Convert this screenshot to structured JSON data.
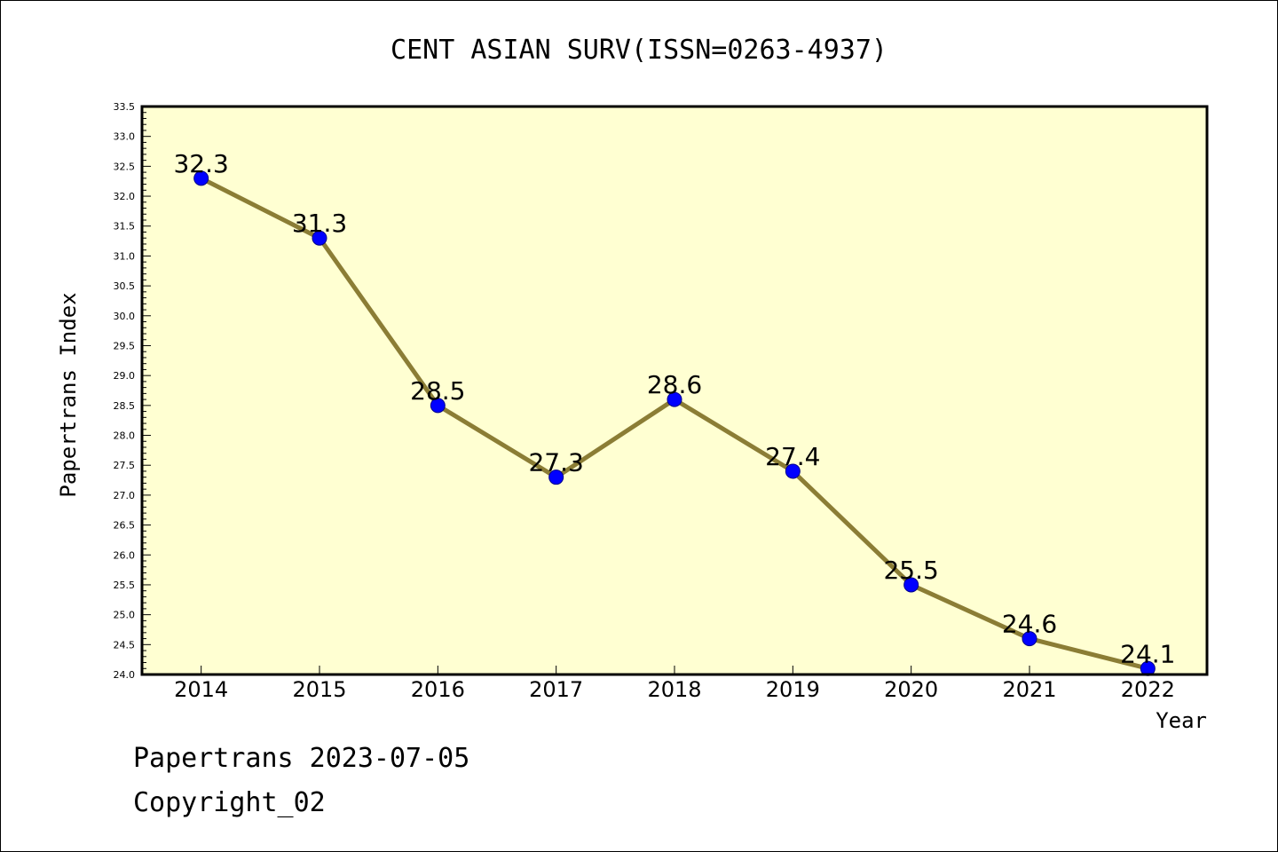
{
  "chart_data": {
    "type": "line",
    "title": "CENT ASIAN SURV(ISSN=0263-4937)",
    "xlabel": "Year",
    "ylabel": "Papertrans Index",
    "categories": [
      "2014",
      "2015",
      "2016",
      "2017",
      "2018",
      "2019",
      "2020",
      "2021",
      "2022"
    ],
    "series": [
      {
        "values": [
          32.3,
          31.3,
          28.5,
          27.3,
          28.6,
          27.4,
          25.5,
          24.6,
          24.1
        ],
        "labels": [
          "32.3",
          "31.3",
          "28.5",
          "27.3",
          "28.6",
          "27.4",
          "25.5",
          "24.6",
          "24.1"
        ]
      }
    ],
    "ylim": [
      24.0,
      33.5
    ],
    "ytick_step": 0.5,
    "grid": false,
    "plot_background": "#FFFFD2",
    "line_color": "#8B7D35",
    "marker_color": "#0000FF"
  },
  "footer": {
    "date_line": "Papertrans 2023-07-05",
    "copyright_line": "Copyright_02"
  }
}
